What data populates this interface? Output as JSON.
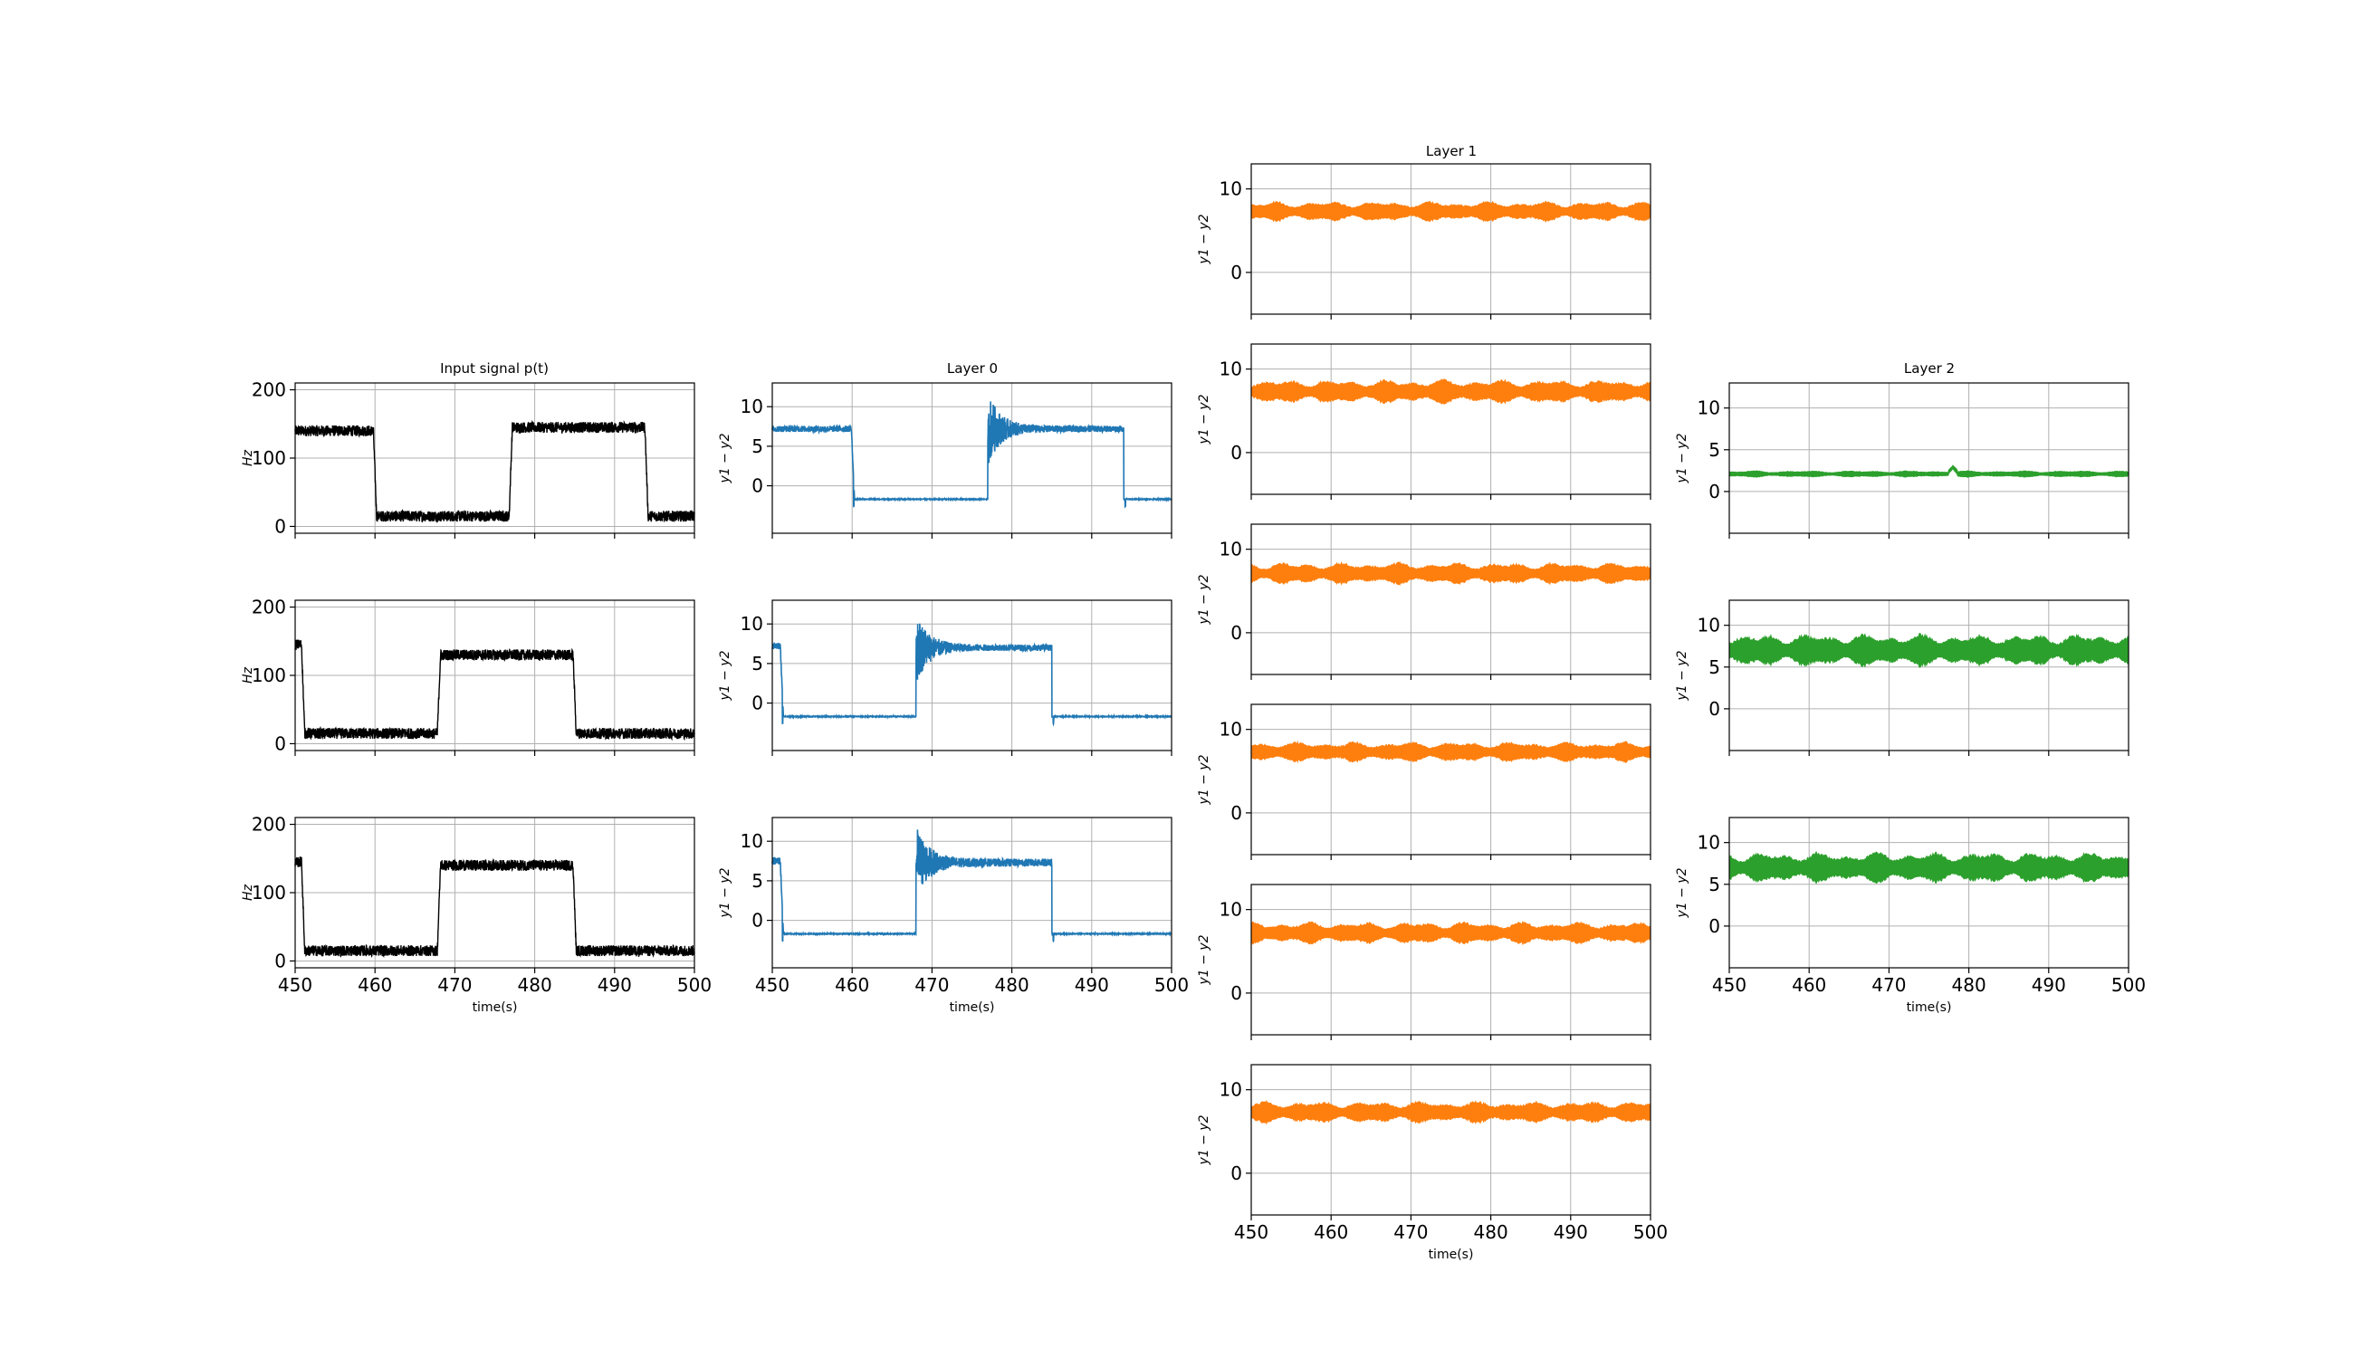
{
  "figure": {
    "background": "#ffffff"
  },
  "colors": {
    "input": "#000000",
    "layer0": "#1f77b4",
    "layer1": "#ff7f0e",
    "layer2": "#2ca02c",
    "grid": "#b0b0b0"
  },
  "column_titles": [
    "Input signal p(t)",
    "Layer 0",
    "Layer 1",
    "Layer 2"
  ],
  "chart_data": [
    {
      "id": "input",
      "type": "line",
      "title": "Input signal p(t)",
      "xlabel": "time(s)",
      "ylabel": "Hz",
      "xlim": [
        450,
        500
      ],
      "ylim": [
        -10,
        210
      ],
      "xticks": [
        450,
        460,
        470,
        480,
        490,
        500
      ],
      "yticks": [
        0,
        100,
        200
      ],
      "grid": true,
      "color": "#000000",
      "series": [
        {
          "x": [
            450,
            459.8,
            460.2,
            476.8,
            477.2,
            493.8,
            494.2,
            500
          ],
          "y": [
            140,
            140,
            15,
            15,
            145,
            145,
            15,
            15
          ],
          "noise": 8
        },
        {
          "x": [
            450,
            450.8,
            451.2,
            467.8,
            468.2,
            484.8,
            485.2,
            500
          ],
          "y": [
            145,
            145,
            15,
            15,
            130,
            130,
            15,
            15
          ],
          "noise": 8
        },
        {
          "x": [
            450,
            450.8,
            451.2,
            467.8,
            468.2,
            484.8,
            485.2,
            500
          ],
          "y": [
            145,
            145,
            15,
            15,
            140,
            140,
            15,
            15
          ],
          "noise": 8
        }
      ]
    },
    {
      "id": "layer0",
      "type": "line",
      "title": "Layer 0",
      "xlabel": "time(s)",
      "ylabel": "y1 − y2",
      "xlim": [
        450,
        500
      ],
      "ylim": [
        -6,
        13
      ],
      "xticks": [
        450,
        460,
        470,
        480,
        490,
        500
      ],
      "yticks": [
        0,
        5,
        10
      ],
      "grid": true,
      "color": "#1f77b4",
      "series": [
        {
          "x": [
            450,
            459.9,
            460.3,
            477,
            500
          ],
          "y": [
            7.2,
            7.2,
            -1.7,
            -1.7,
            -1.7
          ],
          "noise": 0.4,
          "burst": [
            477,
            494,
            7.2,
            11.5
          ],
          "dip": [
            460.2,
            494.2
          ]
        },
        {
          "x": [
            450,
            451,
            451.4,
            468,
            500
          ],
          "y": [
            7.2,
            7.2,
            -1.7,
            -1.7,
            -1.7
          ],
          "noise": 0.4,
          "burst": [
            468,
            485,
            7.0,
            11.3
          ],
          "dip": [
            451.3,
            485.2
          ]
        },
        {
          "x": [
            450,
            451,
            451.4,
            468,
            500
          ],
          "y": [
            7.5,
            7.5,
            -1.7,
            -1.7,
            -1.7
          ],
          "noise": 0.5,
          "burst": [
            468,
            485,
            7.3,
            11.7
          ],
          "dip": [
            451.3,
            485.2
          ]
        }
      ]
    },
    {
      "id": "layer1",
      "type": "area",
      "title": "Layer 1",
      "xlabel": "time(s)",
      "ylabel": "y1 − y2",
      "xlim": [
        450,
        500
      ],
      "ylim": [
        -5,
        13
      ],
      "xticks": [
        450,
        460,
        470,
        480,
        490,
        500
      ],
      "yticks": [
        0,
        10
      ],
      "grid": true,
      "color": "#ff7f0e",
      "series": [
        {
          "center": 7.3,
          "amplitude": 1.1
        },
        {
          "center": 7.3,
          "amplitude": 1.3
        },
        {
          "center": 7.1,
          "amplitude": 1.2
        },
        {
          "center": 7.3,
          "amplitude": 1.1
        },
        {
          "center": 7.2,
          "amplitude": 1.2
        },
        {
          "center": 7.3,
          "amplitude": 1.2
        }
      ]
    },
    {
      "id": "layer2",
      "type": "area",
      "title": "Layer 2",
      "xlabel": "time(s)",
      "ylabel": "y1 − y2",
      "xlim": [
        450,
        500
      ],
      "ylim": [
        -5,
        13
      ],
      "xticks": [
        450,
        460,
        470,
        480,
        490,
        500
      ],
      "yticks": [
        0,
        5,
        10
      ],
      "grid": true,
      "color": "#2ca02c",
      "series": [
        {
          "center": 2.1,
          "amplitude": 0.35,
          "bump": [
            478,
            2.9
          ]
        },
        {
          "center": 7.0,
          "amplitude": 1.8
        },
        {
          "center": 7.0,
          "amplitude": 1.7
        }
      ]
    }
  ]
}
